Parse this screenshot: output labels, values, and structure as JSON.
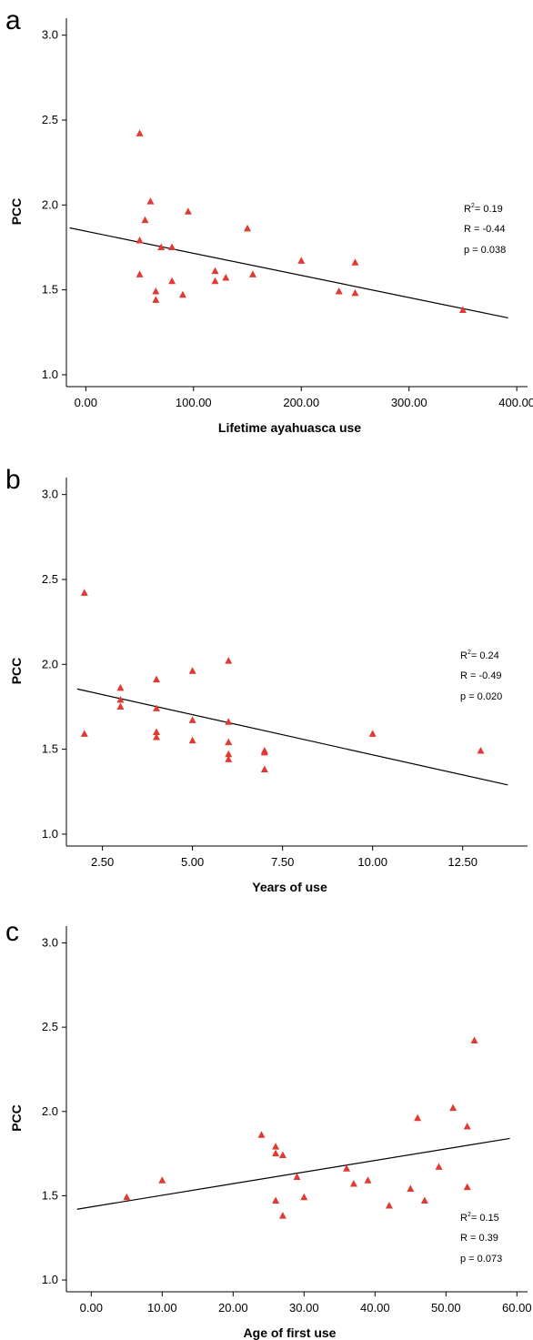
{
  "chart_data": [
    {
      "panel": "a",
      "type": "scatter",
      "xlabel": "Lifetime ayahuasca use",
      "ylabel": "PCC",
      "xlim": [
        -18,
        410
      ],
      "ylim": [
        0.93,
        3.1
      ],
      "xticks": [
        0,
        100,
        200,
        300,
        400
      ],
      "xtick_labels": [
        "0.00",
        "100.00",
        "200.00",
        "300.00",
        "400.00"
      ],
      "yticks": [
        1.0,
        1.5,
        2.0,
        2.5,
        3.0
      ],
      "ytick_labels": [
        "1.0",
        "1.5",
        "2.0",
        "2.5",
        "3.0"
      ],
      "points": [
        [
          50,
          2.42
        ],
        [
          50,
          1.79
        ],
        [
          50,
          1.59
        ],
        [
          55,
          1.91
        ],
        [
          60,
          2.02
        ],
        [
          65,
          1.49
        ],
        [
          65,
          1.44
        ],
        [
          70,
          1.75
        ],
        [
          80,
          1.75
        ],
        [
          80,
          1.55
        ],
        [
          90,
          1.47
        ],
        [
          95,
          1.96
        ],
        [
          120,
          1.61
        ],
        [
          120,
          1.55
        ],
        [
          130,
          1.57
        ],
        [
          150,
          1.86
        ],
        [
          155,
          1.59
        ],
        [
          200,
          1.67
        ],
        [
          235,
          1.49
        ],
        [
          250,
          1.66
        ],
        [
          250,
          1.48
        ],
        [
          350,
          1.38
        ]
      ],
      "fit_line": [
        [
          -15,
          1.865
        ],
        [
          392,
          1.335
        ]
      ],
      "stats": [
        "R",
        "= 0.19",
        "R = -0.44",
        "p = 0.038"
      ]
    },
    {
      "panel": "b",
      "type": "scatter",
      "xlabel": "Years of use",
      "ylabel": "PCC",
      "xlim": [
        1.5,
        14.3
      ],
      "ylim": [
        0.93,
        3.1
      ],
      "xticks": [
        2.5,
        5,
        7.5,
        10,
        12.5
      ],
      "xtick_labels": [
        "2.50",
        "5.00",
        "7.50",
        "10.00",
        "12.50"
      ],
      "yticks": [
        1.0,
        1.5,
        2.0,
        2.5,
        3.0
      ],
      "ytick_labels": [
        "1.0",
        "1.5",
        "2.0",
        "2.5",
        "3.0"
      ],
      "points": [
        [
          2,
          2.42
        ],
        [
          2,
          1.59
        ],
        [
          3,
          1.86
        ],
        [
          3,
          1.79
        ],
        [
          3,
          1.75
        ],
        [
          4,
          1.91
        ],
        [
          4,
          1.74
        ],
        [
          4,
          1.6
        ],
        [
          4,
          1.57
        ],
        [
          5,
          1.96
        ],
        [
          5,
          1.67
        ],
        [
          5,
          1.55
        ],
        [
          6,
          2.02
        ],
        [
          6,
          1.66
        ],
        [
          6,
          1.54
        ],
        [
          6,
          1.47
        ],
        [
          6,
          1.44
        ],
        [
          7,
          1.49
        ],
        [
          7,
          1.48
        ],
        [
          7,
          1.38
        ],
        [
          10,
          1.59
        ],
        [
          13,
          1.49
        ]
      ],
      "fit_line": [
        [
          1.8,
          1.855
        ],
        [
          13.75,
          1.29
        ]
      ],
      "stats": [
        "R",
        "= 0.24",
        "R = -0.49",
        "p = 0.020"
      ]
    },
    {
      "panel": "c",
      "type": "scatter",
      "xlabel": "Age of first use",
      "ylabel": "PCC",
      "xlim": [
        -3.5,
        61.5
      ],
      "ylim": [
        0.93,
        3.1
      ],
      "xticks": [
        0,
        10,
        20,
        30,
        40,
        50,
        60
      ],
      "xtick_labels": [
        "0.00",
        "10.00",
        "20.00",
        "30.00",
        "40.00",
        "50.00",
        "60.00"
      ],
      "yticks": [
        1.0,
        1.5,
        2.0,
        2.5,
        3.0
      ],
      "ytick_labels": [
        "1.0",
        "1.5",
        "2.0",
        "2.5",
        "3.0"
      ],
      "points": [
        [
          5,
          1.49
        ],
        [
          10,
          1.59
        ],
        [
          24,
          1.86
        ],
        [
          26,
          1.79
        ],
        [
          26,
          1.75
        ],
        [
          26,
          1.47
        ],
        [
          27,
          1.74
        ],
        [
          27,
          1.38
        ],
        [
          29,
          1.61
        ],
        [
          30,
          1.49
        ],
        [
          36,
          1.66
        ],
        [
          37,
          1.57
        ],
        [
          39,
          1.59
        ],
        [
          42,
          1.44
        ],
        [
          45,
          1.54
        ],
        [
          46,
          1.96
        ],
        [
          47,
          1.47
        ],
        [
          49,
          1.67
        ],
        [
          51,
          2.02
        ],
        [
          53,
          1.91
        ],
        [
          53,
          1.55
        ],
        [
          54,
          2.42
        ]
      ],
      "fit_line": [
        [
          -2,
          1.42
        ],
        [
          59,
          1.84
        ]
      ],
      "stats": [
        "R",
        "= 0.15",
        "R = 0.39",
        "p = 0.073"
      ]
    }
  ],
  "marker_color": "#e03a33",
  "line_color": "#000000"
}
